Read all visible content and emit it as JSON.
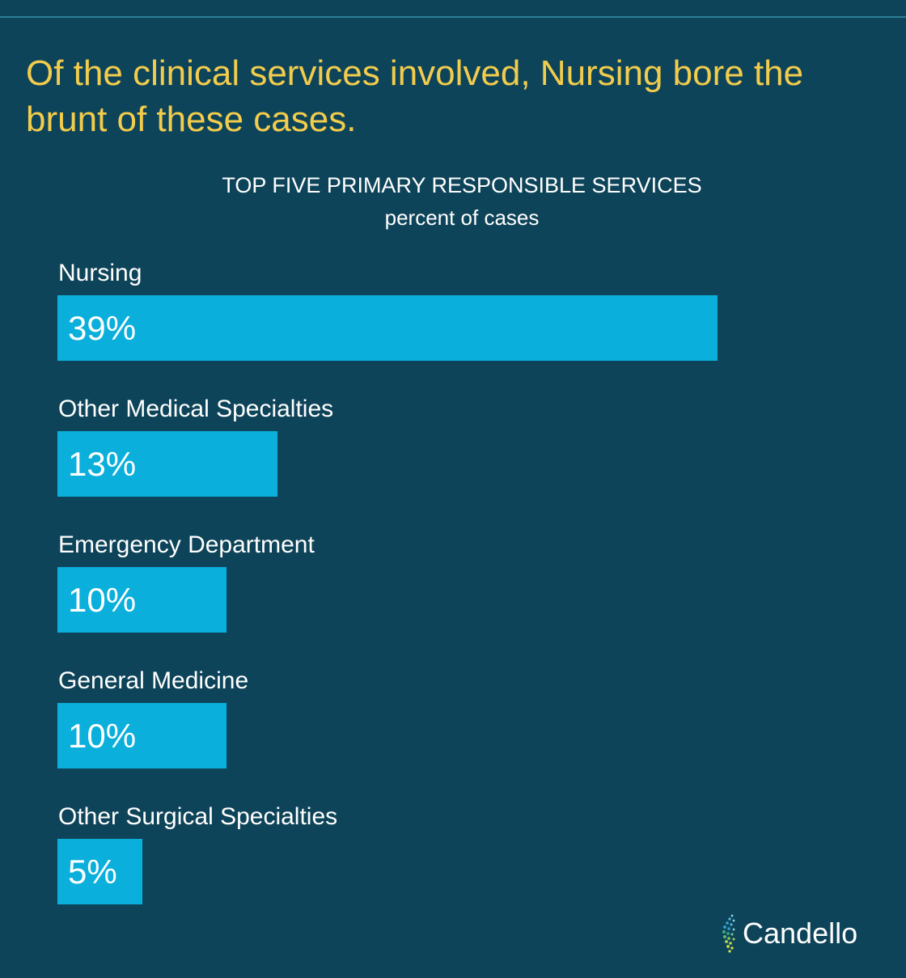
{
  "headline": "Of the clinical services involved, Nursing bore the brunt of these cases.",
  "brand": {
    "name": "Candello",
    "logo_icon": "candello-dots-logo-icon"
  },
  "colors": {
    "background": "#0e4459",
    "headline": "#f2cc4c",
    "bar": "#0aafdc",
    "text": "#ffffff"
  },
  "chart_data": {
    "type": "bar",
    "orientation": "horizontal",
    "title": "TOP FIVE PRIMARY RESPONSIBLE SERVICES",
    "subtitle": "percent of cases",
    "categories": [
      "Nursing",
      "Other Medical Specialties",
      "Emergency Department",
      "General Medicine",
      "Other Surgical Specialties"
    ],
    "values": [
      39,
      13,
      10,
      10,
      5
    ],
    "value_labels": [
      "39%",
      "13%",
      "10%",
      "10%",
      "5%"
    ],
    "unit": "%",
    "grid": false,
    "legend": "none"
  }
}
